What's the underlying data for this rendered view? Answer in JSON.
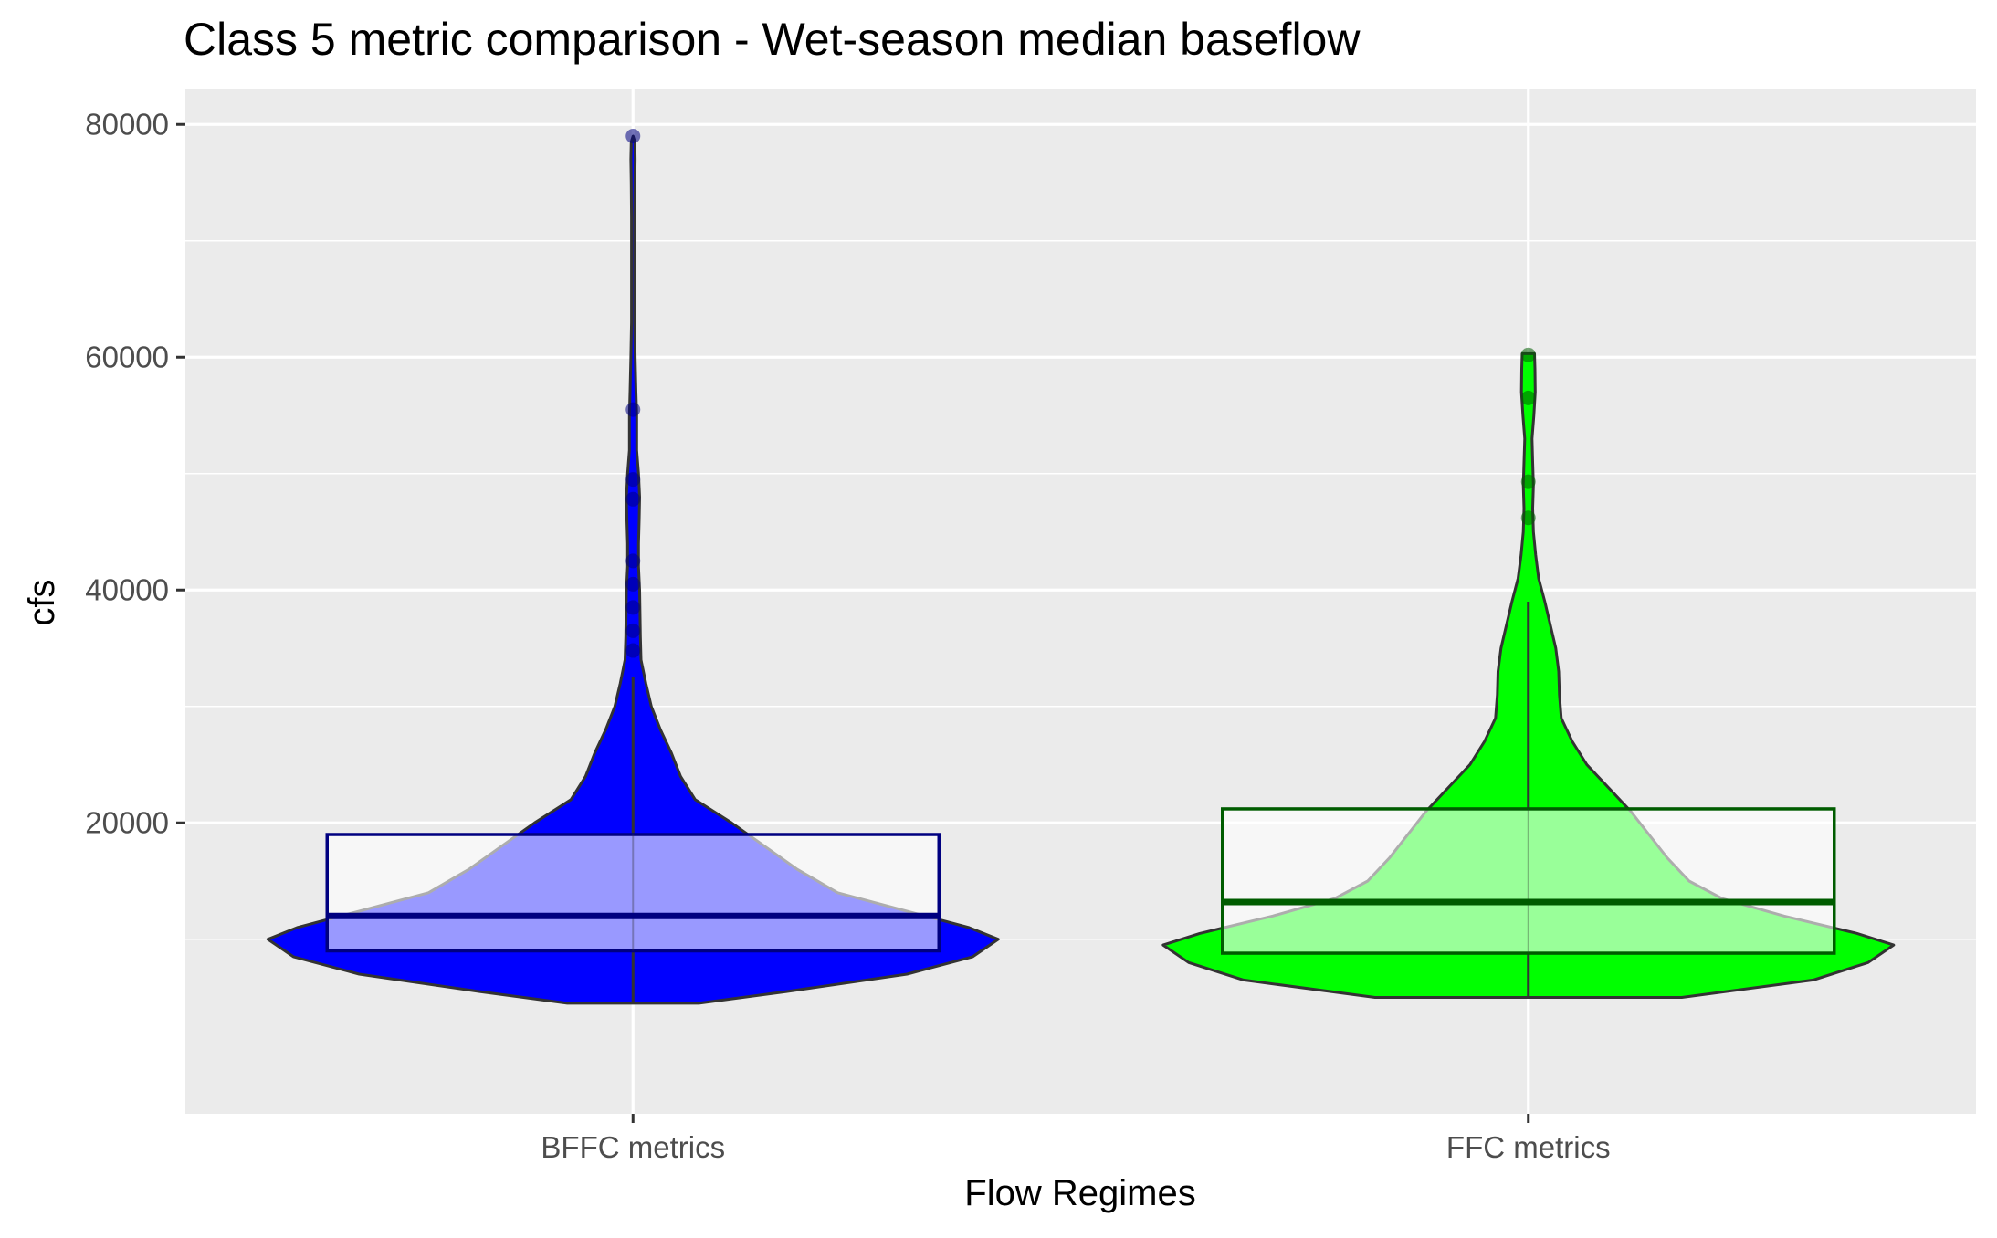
{
  "chart_data": {
    "type": "violin",
    "title": "Class 5 metric comparison - Wet-season median baseflow",
    "xlabel": "Flow Regimes",
    "ylabel": "cfs",
    "ylim": [
      -5000,
      83000
    ],
    "y_ticks": [
      20000,
      40000,
      60000,
      80000
    ],
    "y_minor_ticks": [
      10000,
      30000,
      50000,
      70000
    ],
    "grid": true,
    "legend": "none",
    "categories": [
      "BFFC metrics",
      "FFC metrics"
    ],
    "series": [
      {
        "category": "BFFC metrics",
        "fill_color": "#0000ff",
        "box_edge_color": "#000080",
        "box": {
          "lower_whisker": 4500,
          "q1": 9000,
          "median": 12000,
          "q3": 19000,
          "upper_whisker": 32500
        },
        "outliers": [
          34800,
          36500,
          38500,
          40500,
          42500,
          47800,
          49500,
          55500,
          79000
        ],
        "density_profile": [
          [
            4500,
            0.18
          ],
          [
            5500,
            0.42
          ],
          [
            7000,
            0.75
          ],
          [
            8500,
            0.93
          ],
          [
            10000,
            1.0
          ],
          [
            11000,
            0.92
          ],
          [
            12500,
            0.74
          ],
          [
            14000,
            0.56
          ],
          [
            16000,
            0.45
          ],
          [
            18000,
            0.36
          ],
          [
            20000,
            0.27
          ],
          [
            22000,
            0.17
          ],
          [
            24000,
            0.13
          ],
          [
            26000,
            0.105
          ],
          [
            28000,
            0.075
          ],
          [
            30000,
            0.05
          ],
          [
            32000,
            0.035
          ],
          [
            34000,
            0.022
          ],
          [
            36000,
            0.02
          ],
          [
            40000,
            0.018
          ],
          [
            42000,
            0.015
          ],
          [
            44000,
            0.015
          ],
          [
            46000,
            0.017
          ],
          [
            48000,
            0.018
          ],
          [
            50000,
            0.015
          ],
          [
            52000,
            0.01
          ],
          [
            55000,
            0.01
          ],
          [
            57000,
            0.008
          ],
          [
            60000,
            0.006
          ],
          [
            63000,
            0.004
          ],
          [
            67000,
            0.004
          ],
          [
            72000,
            0.004
          ],
          [
            75000,
            0.005
          ],
          [
            77000,
            0.006
          ],
          [
            78500,
            0.005
          ],
          [
            79000,
            0.0
          ]
        ]
      },
      {
        "category": "FFC metrics",
        "fill_color": "#00ff00",
        "box_edge_color": "#005c00",
        "box": {
          "lower_whisker": 5000,
          "q1": 8800,
          "median": 13200,
          "q3": 21200,
          "upper_whisker": 39000
        },
        "outliers": [
          46200,
          49300,
          56500,
          60200
        ],
        "density_profile": [
          [
            5000,
            0.42
          ],
          [
            6500,
            0.78
          ],
          [
            8000,
            0.93
          ],
          [
            9500,
            1.0
          ],
          [
            10500,
            0.9
          ],
          [
            12000,
            0.7
          ],
          [
            13500,
            0.53
          ],
          [
            15000,
            0.44
          ],
          [
            17000,
            0.38
          ],
          [
            19000,
            0.33
          ],
          [
            21000,
            0.28
          ],
          [
            23000,
            0.22
          ],
          [
            25000,
            0.16
          ],
          [
            27000,
            0.12
          ],
          [
            29000,
            0.09
          ],
          [
            31000,
            0.085
          ],
          [
            33000,
            0.083
          ],
          [
            35000,
            0.075
          ],
          [
            37000,
            0.06
          ],
          [
            39000,
            0.045
          ],
          [
            41000,
            0.028
          ],
          [
            43000,
            0.02
          ],
          [
            45000,
            0.014
          ],
          [
            47000,
            0.012
          ],
          [
            49000,
            0.014
          ],
          [
            51000,
            0.012
          ],
          [
            53000,
            0.01
          ],
          [
            55000,
            0.015
          ],
          [
            57000,
            0.019
          ],
          [
            59000,
            0.018
          ],
          [
            60300,
            0.017
          ]
        ]
      }
    ]
  }
}
